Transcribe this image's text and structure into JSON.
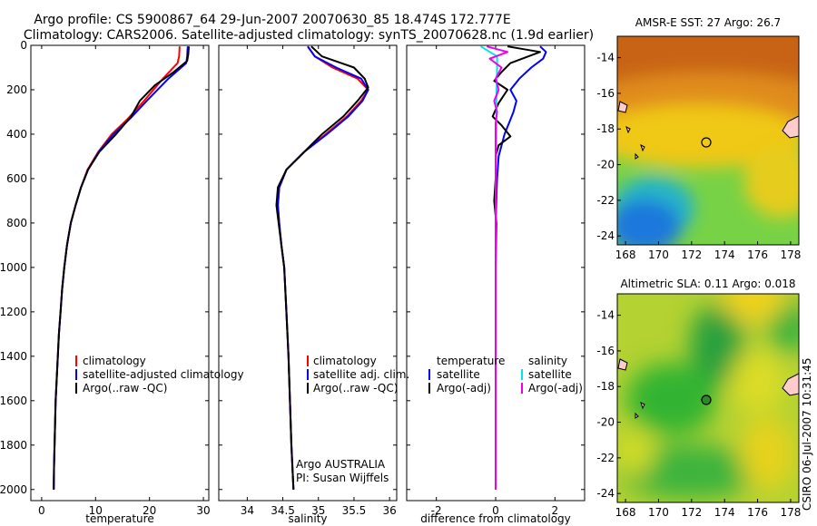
{
  "title": {
    "line1": "Argo profile: CS 5900867_64 29-Jun-2007 20070630_85 18.474S 172.777E",
    "line2": "Climatology: CARS2006. Satellite-adjusted climatology: synTS_20070628.nc (1.9d earlier)"
  },
  "chart_data": [
    {
      "type": "line",
      "name": "temperature",
      "xlabel": "temperature",
      "ylabel": "",
      "xlim": [
        -2,
        31
      ],
      "ylim": [
        2050,
        0
      ],
      "xticks": [
        0,
        10,
        20,
        30
      ],
      "yticks": [
        0,
        200,
        400,
        600,
        800,
        1000,
        1200,
        1400,
        1600,
        1800,
        2000
      ],
      "legend": [
        "climatology",
        "satellite-adjusted climatology",
        "Argo(..raw -QC)"
      ],
      "series": [
        {
          "name": "climatology",
          "color": "#ff0000",
          "points": [
            [
              25.6,
              5
            ],
            [
              25.5,
              50
            ],
            [
              25.2,
              80
            ],
            [
              22.5,
              150
            ],
            [
              19,
              250
            ],
            [
              16,
              330
            ],
            [
              13,
              400
            ],
            [
              10.5,
              480
            ],
            [
              8.5,
              560
            ],
            [
              7.3,
              640
            ],
            [
              6.3,
              720
            ],
            [
              5.4,
              800
            ],
            [
              4.7,
              900
            ],
            [
              4.2,
              1000
            ],
            [
              3.8,
              1100
            ],
            [
              3.5,
              1200
            ],
            [
              3.2,
              1300
            ],
            [
              3,
              1400
            ],
            [
              2.8,
              1500
            ],
            [
              2.6,
              1600
            ],
            [
              2.5,
              1700
            ],
            [
              2.4,
              1800
            ],
            [
              2.3,
              1900
            ],
            [
              2.25,
              2000
            ]
          ]
        },
        {
          "name": "satellite-adjusted climatology",
          "color": "#0000ff",
          "points": [
            [
              27.1,
              5
            ],
            [
              27,
              50
            ],
            [
              26.8,
              80
            ],
            [
              23.5,
              150
            ],
            [
              19.5,
              250
            ],
            [
              16.4,
              330
            ],
            [
              13.3,
              400
            ],
            [
              10.6,
              480
            ],
            [
              8.6,
              560
            ],
            [
              7.3,
              640
            ],
            [
              6.3,
              720
            ],
            [
              5.4,
              800
            ],
            [
              4.7,
              900
            ],
            [
              4.2,
              1000
            ],
            [
              3.8,
              1100
            ],
            [
              3.5,
              1200
            ],
            [
              3.2,
              1300
            ],
            [
              3,
              1400
            ],
            [
              2.8,
              1500
            ],
            [
              2.6,
              1600
            ],
            [
              2.5,
              1700
            ],
            [
              2.4,
              1800
            ],
            [
              2.3,
              1900
            ],
            [
              2.25,
              2000
            ]
          ]
        },
        {
          "name": "Argo(..raw -QC)",
          "color": "#000000",
          "points": [
            [
              27.3,
              5
            ],
            [
              27.2,
              40
            ],
            [
              27,
              70
            ],
            [
              24.5,
              120
            ],
            [
              21,
              180
            ],
            [
              18.2,
              250
            ],
            [
              16.6,
              320
            ],
            [
              13.8,
              400
            ],
            [
              10.7,
              480
            ],
            [
              8.6,
              560
            ],
            [
              7.3,
              640
            ],
            [
              6.3,
              720
            ],
            [
              5.4,
              800
            ],
            [
              4.7,
              900
            ],
            [
              4.2,
              1000
            ],
            [
              3.8,
              1100
            ],
            [
              3.5,
              1200
            ],
            [
              3.2,
              1300
            ],
            [
              3,
              1400
            ],
            [
              2.8,
              1500
            ],
            [
              2.6,
              1600
            ],
            [
              2.5,
              1700
            ],
            [
              2.4,
              1800
            ],
            [
              2.3,
              1900
            ],
            [
              2.25,
              2000
            ]
          ]
        }
      ]
    },
    {
      "type": "line",
      "name": "salinity",
      "xlabel": "salinity",
      "ylabel": "",
      "xlim": [
        33.6,
        36.1
      ],
      "ylim": [
        2050,
        0
      ],
      "xticks": [
        34,
        34.5,
        35,
        35.5,
        36
      ],
      "yticks": [
        0,
        200,
        400,
        600,
        800,
        1000,
        1200,
        1400,
        1600,
        1800,
        2000
      ],
      "legend": [
        "climatology",
        "satellite adj. clim.",
        "Argo(..raw -QC)"
      ],
      "annotation": [
        "Argo AUSTRALIA",
        "PI: Susan Wijffels"
      ],
      "series": [
        {
          "name": "climatology",
          "color": "#ff0000",
          "points": [
            [
              34.85,
              5
            ],
            [
              34.95,
              50
            ],
            [
              35.2,
              100
            ],
            [
              35.55,
              150
            ],
            [
              35.7,
              200
            ],
            [
              35.6,
              250
            ],
            [
              35.4,
              320
            ],
            [
              35.1,
              400
            ],
            [
              34.8,
              480
            ],
            [
              34.55,
              560
            ],
            [
              34.45,
              640
            ],
            [
              34.43,
              720
            ],
            [
              34.45,
              800
            ],
            [
              34.48,
              900
            ],
            [
              34.52,
              1000
            ],
            [
              34.55,
              1200
            ],
            [
              34.58,
              1400
            ],
            [
              34.6,
              1600
            ],
            [
              34.62,
              1800
            ],
            [
              34.65,
              2000
            ]
          ]
        },
        {
          "name": "satellite adj. clim.",
          "color": "#0000ff",
          "points": [
            [
              34.85,
              5
            ],
            [
              34.95,
              50
            ],
            [
              35.25,
              100
            ],
            [
              35.6,
              150
            ],
            [
              35.7,
              200
            ],
            [
              35.62,
              250
            ],
            [
              35.42,
              320
            ],
            [
              35.12,
              400
            ],
            [
              34.8,
              480
            ],
            [
              34.55,
              560
            ],
            [
              34.45,
              640
            ],
            [
              34.43,
              720
            ],
            [
              34.45,
              800
            ],
            [
              34.48,
              900
            ],
            [
              34.52,
              1000
            ],
            [
              34.55,
              1200
            ],
            [
              34.58,
              1400
            ],
            [
              34.6,
              1600
            ],
            [
              34.62,
              1800
            ],
            [
              34.65,
              2000
            ]
          ]
        },
        {
          "name": "Argo(..raw -QC)",
          "color": "#000000",
          "points": [
            [
              34.9,
              5
            ],
            [
              35.05,
              50
            ],
            [
              35.5,
              100
            ],
            [
              35.65,
              150
            ],
            [
              35.7,
              190
            ],
            [
              35.55,
              250
            ],
            [
              35.35,
              320
            ],
            [
              35.05,
              400
            ],
            [
              34.8,
              480
            ],
            [
              34.55,
              560
            ],
            [
              34.43,
              640
            ],
            [
              34.41,
              720
            ],
            [
              34.44,
              800
            ],
            [
              34.48,
              900
            ],
            [
              34.52,
              1000
            ],
            [
              34.55,
              1200
            ],
            [
              34.58,
              1400
            ],
            [
              34.6,
              1600
            ],
            [
              34.62,
              1800
            ],
            [
              34.65,
              2000
            ]
          ]
        }
      ]
    },
    {
      "type": "line",
      "name": "difference",
      "xlabel": "difference from climatology",
      "ylabel": "",
      "xlim": [
        -3,
        3
      ],
      "ylim": [
        2050,
        0
      ],
      "xticks": [
        -2,
        0,
        2
      ],
      "yticks": [
        0,
        200,
        400,
        600,
        800,
        1000,
        1200,
        1400,
        1600,
        1800,
        2000
      ],
      "legend_temperature": [
        "temperature",
        "satellite",
        "Argo(-adj)"
      ],
      "legend_salinity": [
        "salinity",
        "satellite",
        "Argo(-adj)"
      ],
      "series": [
        {
          "name": "temperature satellite",
          "color": "#0000ff",
          "points": [
            [
              1.5,
              5
            ],
            [
              1.7,
              30
            ],
            [
              1.6,
              60
            ],
            [
              1.2,
              100
            ],
            [
              0.8,
              150
            ],
            [
              0.5,
              200
            ],
            [
              0.7,
              250
            ],
            [
              0.6,
              300
            ],
            [
              0.3,
              400
            ],
            [
              0.1,
              500
            ],
            [
              0.05,
              600
            ],
            [
              0.02,
              700
            ],
            [
              0,
              800
            ],
            [
              0,
              1000
            ],
            [
              0,
              1500
            ],
            [
              0,
              2000
            ]
          ]
        },
        {
          "name": "temperature Argo(-adj)",
          "color": "#000000",
          "points": [
            [
              0.4,
              5
            ],
            [
              1.5,
              30
            ],
            [
              0.5,
              80
            ],
            [
              0.2,
              120
            ],
            [
              -0.05,
              160
            ],
            [
              0.4,
              200
            ],
            [
              0.1,
              260
            ],
            [
              -0.1,
              320
            ],
            [
              0.2,
              360
            ],
            [
              0.5,
              410
            ],
            [
              0.1,
              450
            ],
            [
              0,
              500
            ],
            [
              0,
              600
            ],
            [
              -0.05,
              700
            ],
            [
              0.02,
              800
            ],
            [
              0,
              1000
            ],
            [
              0,
              1500
            ],
            [
              0,
              2000
            ]
          ]
        },
        {
          "name": "salinity satellite",
          "color": "#00e5ee",
          "points": [
            [
              -0.5,
              5
            ],
            [
              0.05,
              50
            ],
            [
              0.05,
              100
            ],
            [
              0.03,
              200
            ],
            [
              0.02,
              400
            ],
            [
              0,
              600
            ],
            [
              0,
              1000
            ],
            [
              0,
              1500
            ],
            [
              0,
              2000
            ]
          ]
        },
        {
          "name": "salinity Argo(-adj)",
          "color": "#ee00ee",
          "points": [
            [
              -0.3,
              5
            ],
            [
              0.4,
              30
            ],
            [
              -0.2,
              60
            ],
            [
              0.2,
              100
            ],
            [
              0,
              150
            ],
            [
              0.1,
              200
            ],
            [
              -0.05,
              250
            ],
            [
              0.05,
              300
            ],
            [
              0,
              350
            ],
            [
              0,
              400
            ],
            [
              0,
              600
            ],
            [
              0,
              1000
            ],
            [
              0,
              2000
            ]
          ]
        }
      ]
    },
    {
      "type": "heatmap",
      "name": "AMSR-E SST map",
      "title": "AMSR-E SST: 27 Argo: 26.7",
      "xlim": [
        167.5,
        178.5
      ],
      "ylim": [
        -24.5,
        -12.8
      ],
      "xticks": [
        168,
        170,
        172,
        174,
        176,
        178
      ],
      "yticks": [
        -14,
        -16,
        -18,
        -20,
        -22,
        -24
      ],
      "marker": {
        "lon": 172.777,
        "lat": -18.474,
        "filled": false
      },
      "colors": [
        "#c86414",
        "#f0c814",
        "#78d246",
        "#1e78dc"
      ]
    },
    {
      "type": "heatmap",
      "name": "Altimetric SLA map",
      "title": "Altimetric SLA: 0.11 Argo: 0.018",
      "xlim": [
        167.5,
        178.5
      ],
      "ylim": [
        -24.5,
        -12.8
      ],
      "xticks": [
        168,
        170,
        172,
        174,
        176,
        178
      ],
      "yticks": [
        -14,
        -16,
        -18,
        -20,
        -22,
        -24
      ],
      "marker": {
        "lon": 172.777,
        "lat": -18.474,
        "filled": true
      },
      "colors": [
        "#dcdc28",
        "#32b432",
        "#28a03c",
        "#f0d21e"
      ]
    }
  ],
  "credit": "CSIRO 06-Jul-2007 10:31:45"
}
